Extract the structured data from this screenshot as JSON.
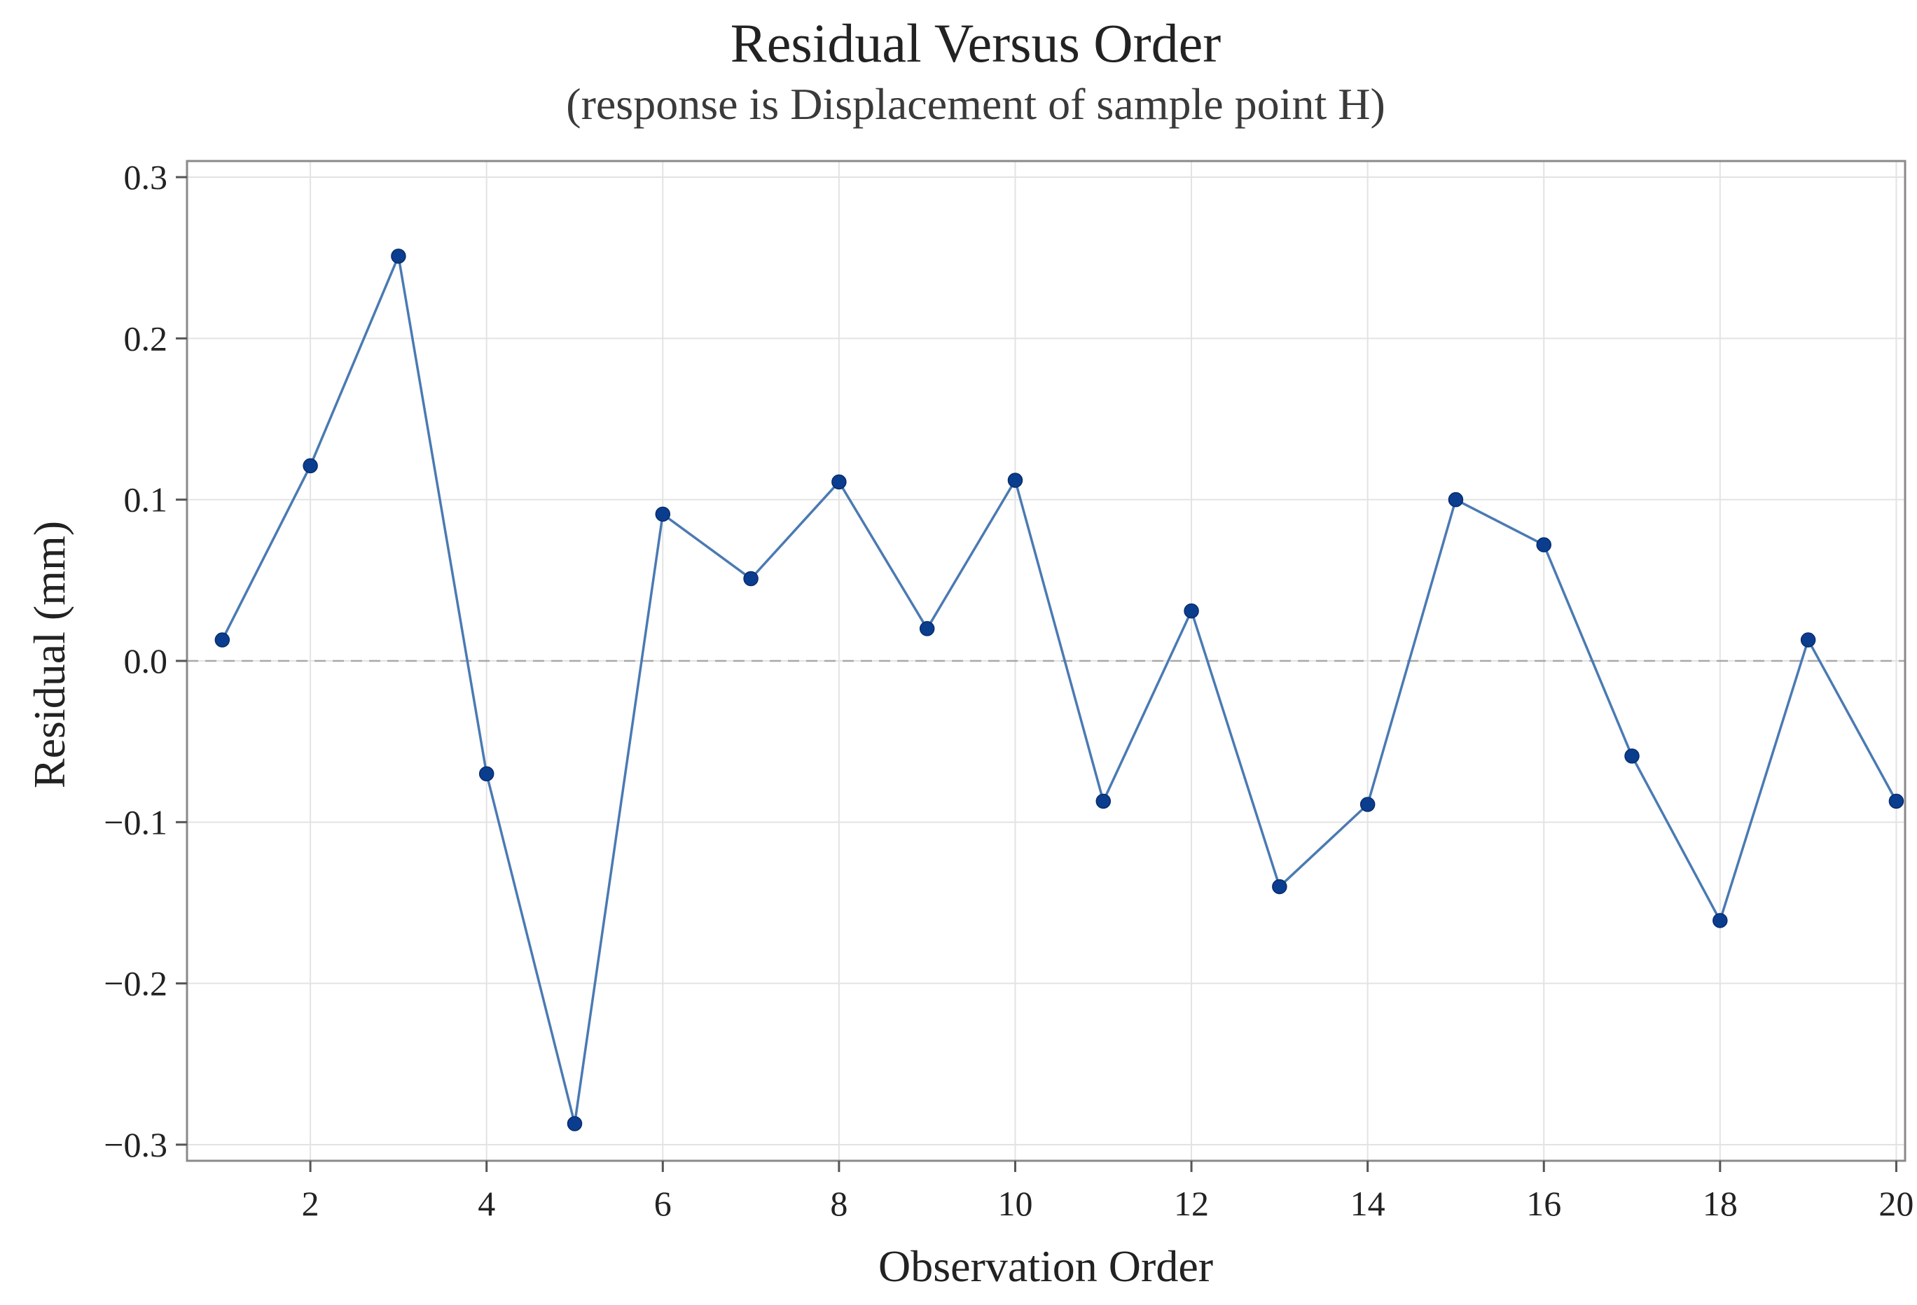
{
  "chart_data": {
    "type": "line",
    "title": "Residual Versus Order",
    "subtitle": "(response is Displacement of sample point H)",
    "xlabel": "Observation Order",
    "ylabel": "Residual (mm)",
    "xlim": [
      0.6,
      20.1
    ],
    "ylim": [
      -0.31,
      0.31
    ],
    "x_ticks": [
      2,
      4,
      6,
      8,
      10,
      12,
      14,
      16,
      18,
      20
    ],
    "x_tick_labels": [
      "2",
      "4",
      "6",
      "8",
      "10",
      "12",
      "14",
      "16",
      "18",
      "20"
    ],
    "y_ticks": [
      -0.3,
      -0.2,
      -0.1,
      0.0,
      0.1,
      0.2,
      0.3
    ],
    "y_tick_labels": [
      "−0.3",
      "−0.2",
      "−0.1",
      "0.0",
      "0.1",
      "0.2",
      "0.3"
    ],
    "reference_line": {
      "y": 0.0,
      "style": "dashed"
    },
    "grid": true,
    "x": [
      1,
      2,
      3,
      4,
      5,
      6,
      7,
      8,
      9,
      10,
      11,
      12,
      13,
      14,
      15,
      16,
      17,
      18,
      19,
      20
    ],
    "series": [
      {
        "values": [
          0.013,
          0.121,
          0.251,
          -0.07,
          -0.287,
          0.091,
          0.051,
          0.111,
          0.02,
          0.112,
          -0.087,
          0.031,
          -0.14,
          -0.089,
          0.1,
          0.072,
          -0.059,
          -0.161,
          0.013,
          -0.087
        ]
      }
    ],
    "colors": {
      "line": "#4a7ab3",
      "marker": "#0b3d8f",
      "grid": "#e3e3e3",
      "frame": "#8a8a8a",
      "zero_line": "#a8a8a8"
    }
  }
}
